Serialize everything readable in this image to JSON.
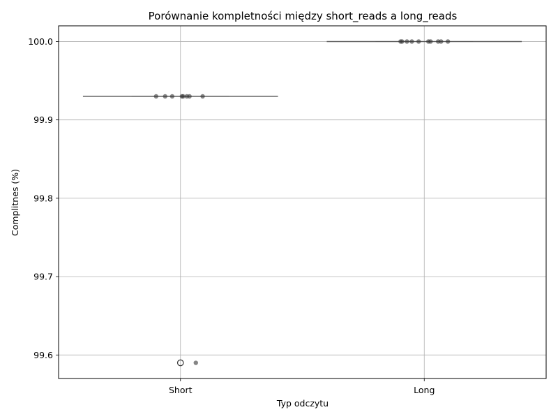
{
  "chart_data": {
    "type": "scatter",
    "title": "Porównanie kompletności między short_reads a long_reads",
    "xlabel": "Typ odczytu",
    "ylabel": "Complitnes (%)",
    "categories": [
      "Short",
      "Long"
    ],
    "ylim": [
      99.57,
      100.02
    ],
    "yticks": [
      99.6,
      99.7,
      99.8,
      99.9,
      100.0
    ],
    "yticklabels": [
      "99.6",
      "99.7",
      "99.8",
      "99.9",
      "100.0"
    ],
    "grid": true,
    "colors": {
      "points": "#333333",
      "box": "#555555",
      "grid": "#b0b0b0",
      "frame": "#000000"
    },
    "groups": [
      {
        "category": "Short",
        "median": 99.93,
        "q1": 99.93,
        "q3": 99.93,
        "whisker_low": 99.93,
        "whisker_high": 99.93,
        "outliers": [
          99.59
        ],
        "points": [
          {
            "jitter": -0.1,
            "y": 99.93
          },
          {
            "jitter": -0.063,
            "y": 99.93
          },
          {
            "jitter": -0.034,
            "y": 99.93
          },
          {
            "jitter": 0.006,
            "y": 99.93
          },
          {
            "jitter": 0.011,
            "y": 99.93
          },
          {
            "jitter": 0.026,
            "y": 99.93
          },
          {
            "jitter": 0.037,
            "y": 99.93
          },
          {
            "jitter": 0.091,
            "y": 99.93
          },
          {
            "jitter": 0.063,
            "y": 99.59
          }
        ]
      },
      {
        "category": "Long",
        "median": 100.0,
        "q1": 100.0,
        "q3": 100.0,
        "whisker_low": 100.0,
        "whisker_high": 100.0,
        "outliers": [],
        "points": [
          {
            "jitter": -0.097,
            "y": 100.0
          },
          {
            "jitter": -0.091,
            "y": 100.0
          },
          {
            "jitter": -0.071,
            "y": 100.0
          },
          {
            "jitter": -0.051,
            "y": 100.0
          },
          {
            "jitter": -0.023,
            "y": 100.0
          },
          {
            "jitter": 0.017,
            "y": 100.0
          },
          {
            "jitter": 0.026,
            "y": 100.0
          },
          {
            "jitter": 0.057,
            "y": 100.0
          },
          {
            "jitter": 0.069,
            "y": 100.0
          },
          {
            "jitter": 0.097,
            "y": 100.0
          }
        ]
      }
    ]
  }
}
